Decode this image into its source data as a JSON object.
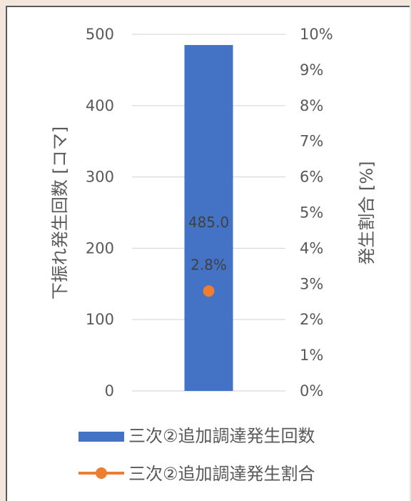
{
  "chart_data": {
    "type": "bar",
    "categories": [
      ""
    ],
    "series": [
      {
        "name": "三次②追加調達発生回数",
        "kind": "bar",
        "axis": "left",
        "color": "#4472c4",
        "values": [
          485.0
        ],
        "labels": [
          "485.0"
        ]
      },
      {
        "name": "三次②追加調達発生割合",
        "kind": "line",
        "axis": "right",
        "color": "#ed7d31",
        "values": [
          2.8
        ],
        "labels": [
          "2.8%"
        ]
      }
    ],
    "ylabel": "下振れ発生回数 [コマ]",
    "y2label": "発生割合 [%]",
    "ylim": [
      0,
      500
    ],
    "y2lim": [
      0,
      10
    ],
    "yticks": [
      "0",
      "100",
      "200",
      "300",
      "400",
      "500"
    ],
    "y2ticks": [
      "0%",
      "1%",
      "2%",
      "3%",
      "4%",
      "5%",
      "6%",
      "7%",
      "8%",
      "9%",
      "10%"
    ],
    "grid": true,
    "legend_position": "bottom"
  }
}
